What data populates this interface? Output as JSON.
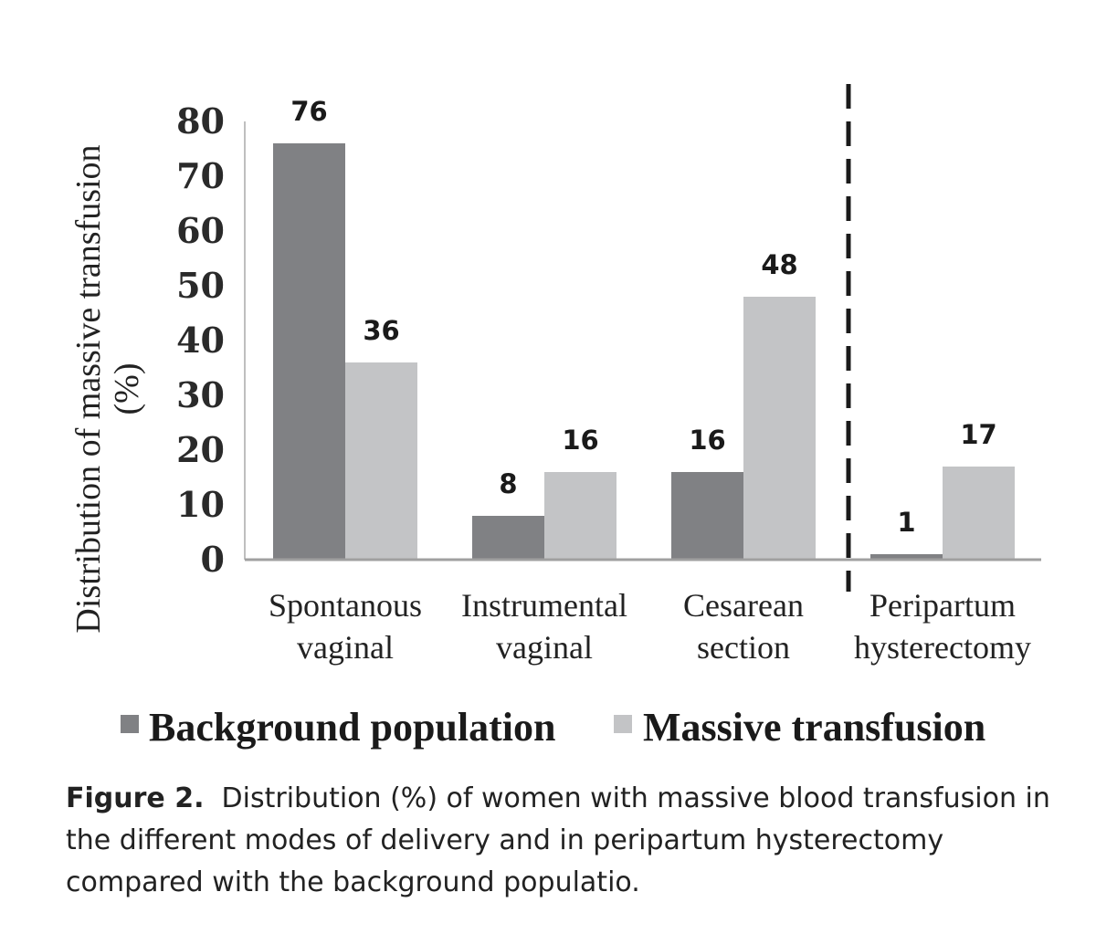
{
  "chart_data": {
    "type": "bar",
    "categories": [
      [
        "Spontanous",
        "vaginal"
      ],
      [
        "Instrumental",
        "vaginal"
      ],
      [
        "Cesarean",
        "section"
      ],
      [
        "Peripartum",
        "hysterectomy"
      ]
    ],
    "series": [
      {
        "name": "Background population",
        "values": [
          76,
          8,
          16,
          1
        ],
        "color": "#808184"
      },
      {
        "name": "Massive transfusion",
        "values": [
          36,
          16,
          48,
          17
        ],
        "color": "#c3c4c6"
      }
    ],
    "ylabel": [
      "Distribution of massive transfusion",
      "(%)"
    ],
    "ylim": [
      0,
      80
    ],
    "yticks": [
      "0",
      "10",
      "20",
      "30",
      "40",
      "50",
      "60",
      "70",
      "80"
    ],
    "data_labels": [
      [
        "76",
        "8",
        "16",
        "1"
      ],
      [
        "36",
        "16",
        "48",
        "17"
      ]
    ],
    "separator": "dashed line between Cesarean section and Peripartum hysterectomy",
    "legend_position": "bottom",
    "grid": false
  },
  "caption": {
    "label": "Figure 2.",
    "text": "Distribution (%) of women with massive blood transfusion in the different modes of delivery and in peripartum hysterectomy compared with the background populatio."
  }
}
